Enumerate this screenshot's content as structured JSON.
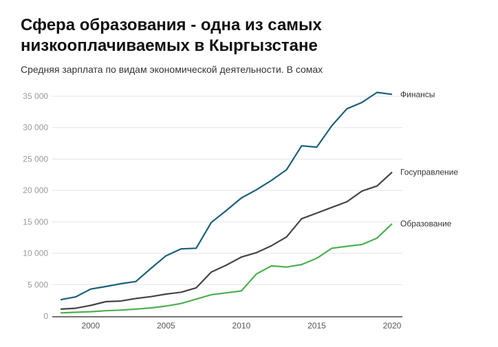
{
  "chart_data": {
    "type": "line",
    "title": "Сфера образования - одна из самых низкооплачиваемых в Кыргызстане",
    "subtitle": "Средняя зарплата по видам экономической деятельности. В сомах",
    "x": [
      1998,
      1999,
      2000,
      2001,
      2002,
      2003,
      2004,
      2005,
      2006,
      2007,
      2008,
      2009,
      2010,
      2011,
      2012,
      2013,
      2014,
      2015,
      2016,
      2017,
      2018,
      2019,
      2020
    ],
    "series": [
      {
        "name": "Финансы",
        "color": "#1a5f7a",
        "values": [
          2600,
          3050,
          4300,
          4700,
          5150,
          5500,
          7600,
          9600,
          10700,
          10800,
          14900,
          16800,
          18800,
          20100,
          21600,
          23300,
          27100,
          26900,
          30300,
          33000,
          34000,
          35600,
          35300
        ]
      },
      {
        "name": "Госуправление",
        "color": "#444444",
        "values": [
          1100,
          1250,
          1700,
          2300,
          2400,
          2800,
          3100,
          3500,
          3800,
          4500,
          7000,
          8100,
          9400,
          10100,
          11200,
          12600,
          15500,
          16400,
          17300,
          18200,
          19900,
          20700,
          22900
        ]
      },
      {
        "name": "Образование",
        "color": "#4caf50",
        "values": [
          500,
          600,
          700,
          850,
          950,
          1100,
          1300,
          1600,
          2000,
          2700,
          3400,
          3700,
          4000,
          6700,
          8000,
          7800,
          8200,
          9200,
          10800,
          11100,
          11400,
          12400,
          14700
        ]
      }
    ],
    "yticks": [
      0,
      5000,
      10000,
      15000,
      20000,
      25000,
      30000,
      35000
    ],
    "ytick_labels": [
      "0",
      "5 000",
      "10 000",
      "15 000",
      "20 000",
      "25 000",
      "30 000",
      "35 000"
    ],
    "xticks": [
      2000,
      2005,
      2010,
      2015,
      2020
    ],
    "xtick_labels": [
      "2000",
      "2005",
      "2010",
      "2015",
      "2020"
    ],
    "ylim": [
      0,
      35000
    ],
    "xlim": [
      1998,
      2020
    ],
    "grid": true,
    "legend": "inline-right"
  }
}
